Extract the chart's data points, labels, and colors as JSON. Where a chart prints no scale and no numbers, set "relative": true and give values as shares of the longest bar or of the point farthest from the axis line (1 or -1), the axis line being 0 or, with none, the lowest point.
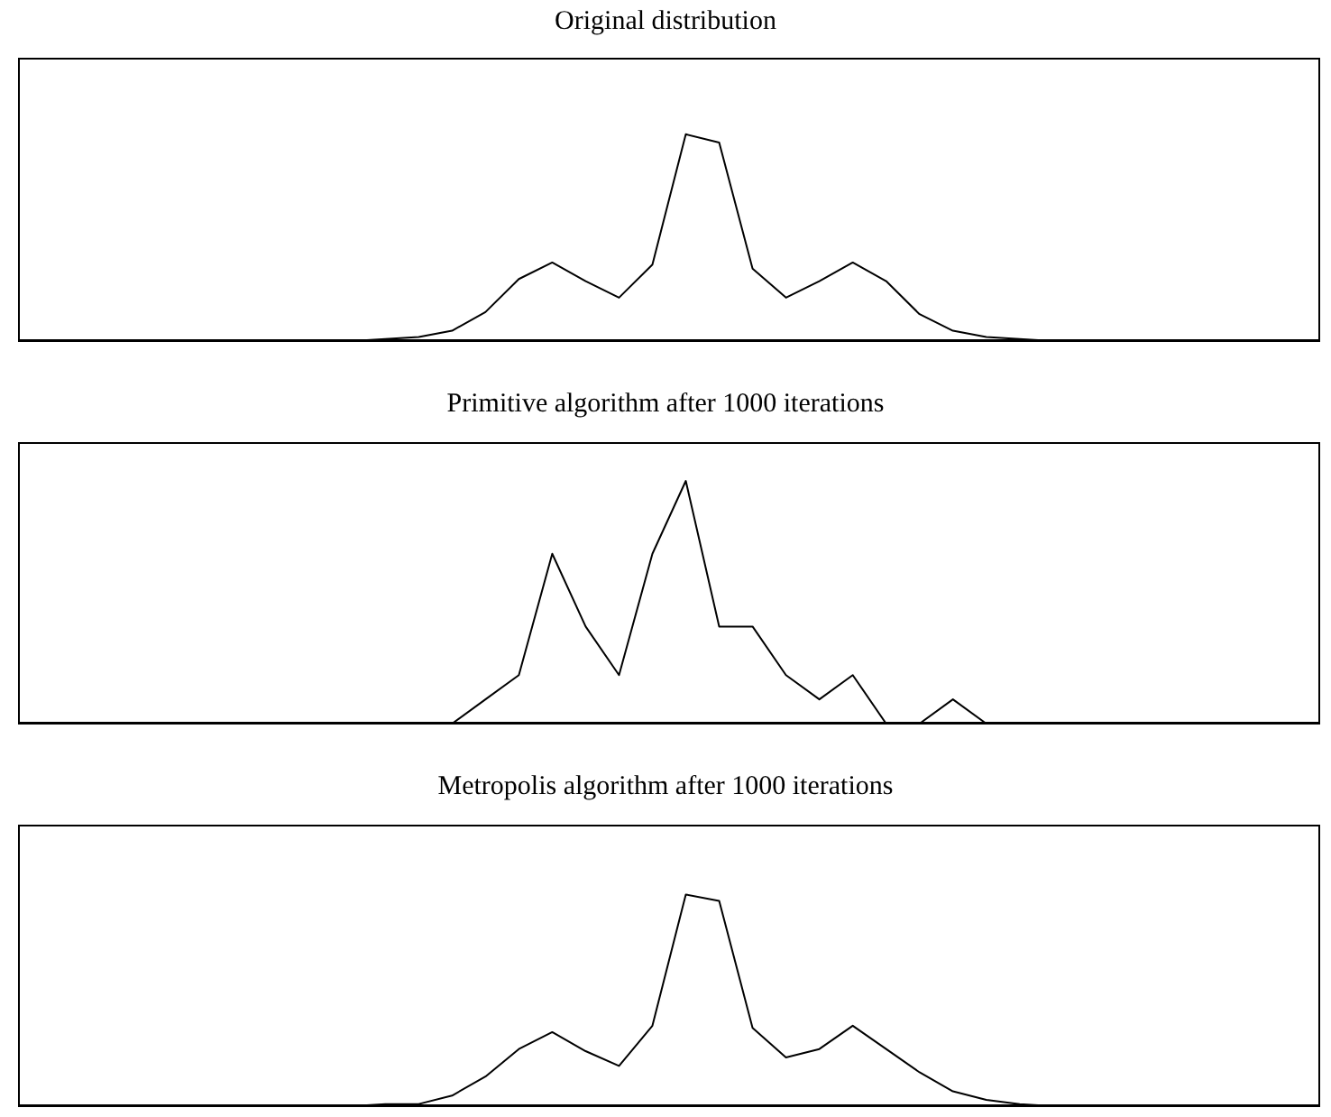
{
  "chart_data": [
    {
      "type": "line",
      "title": "Original distribution",
      "relative": true,
      "color": "#000000",
      "categories": [
        null,
        null,
        null,
        null,
        null,
        null,
        null,
        null,
        null,
        null,
        null,
        null,
        null,
        null,
        null,
        null,
        null,
        null,
        null,
        null,
        null,
        null,
        null,
        null,
        null,
        null,
        null,
        null,
        null,
        null,
        null,
        null,
        null,
        null,
        null,
        null,
        null,
        null,
        null,
        null
      ],
      "values": [
        0,
        0,
        0,
        0,
        0,
        0,
        0,
        0,
        0,
        0,
        0,
        0.01,
        0.02,
        0.05,
        0.14,
        0.3,
        0.38,
        0.29,
        0.21,
        0.37,
        1,
        0.96,
        0.35,
        0.21,
        0.29,
        0.38,
        0.29,
        0.13,
        0.05,
        0.02,
        0.01,
        0,
        0,
        0,
        0,
        0,
        0,
        0,
        0,
        0
      ]
    },
    {
      "type": "line",
      "title": "Primitive algorithm after 1000 iterations",
      "relative": true,
      "color": "#000000",
      "categories": [
        null,
        null,
        null,
        null,
        null,
        null,
        null,
        null,
        null,
        null,
        null,
        null,
        null,
        null,
        null,
        null,
        null,
        null,
        null,
        null,
        null,
        null,
        null,
        null,
        null,
        null,
        null,
        null,
        null,
        null,
        null,
        null,
        null,
        null,
        null,
        null,
        null,
        null,
        null,
        null
      ],
      "values": [
        0,
        0,
        0,
        0,
        0,
        0,
        0,
        0,
        0,
        0,
        0,
        0,
        0,
        0,
        0.1,
        0.2,
        0.7,
        0.4,
        0.2,
        0.7,
        1,
        0.4,
        0.4,
        0.2,
        0.1,
        0.2,
        0,
        0,
        0.1,
        0,
        0,
        0,
        0,
        0,
        0,
        0,
        0,
        0,
        0,
        0
      ]
    },
    {
      "type": "line",
      "title": "Metropolis algorithm after 1000 iterations",
      "relative": true,
      "color": "#000000",
      "categories": [
        null,
        null,
        null,
        null,
        null,
        null,
        null,
        null,
        null,
        null,
        null,
        null,
        null,
        null,
        null,
        null,
        null,
        null,
        null,
        null,
        null,
        null,
        null,
        null,
        null,
        null,
        null,
        null,
        null,
        null,
        null,
        null,
        null,
        null,
        null,
        null,
        null,
        null,
        null,
        null
      ],
      "values": [
        0,
        0,
        0,
        0,
        0,
        0,
        0,
        0,
        0,
        0,
        0,
        0.01,
        0.01,
        0.05,
        0.14,
        0.27,
        0.35,
        0.26,
        0.19,
        0.38,
        1,
        0.97,
        0.37,
        0.23,
        0.27,
        0.38,
        0.27,
        0.16,
        0.07,
        0.03,
        0.01,
        0,
        0,
        0,
        0,
        0,
        0,
        0,
        0,
        0
      ]
    }
  ]
}
